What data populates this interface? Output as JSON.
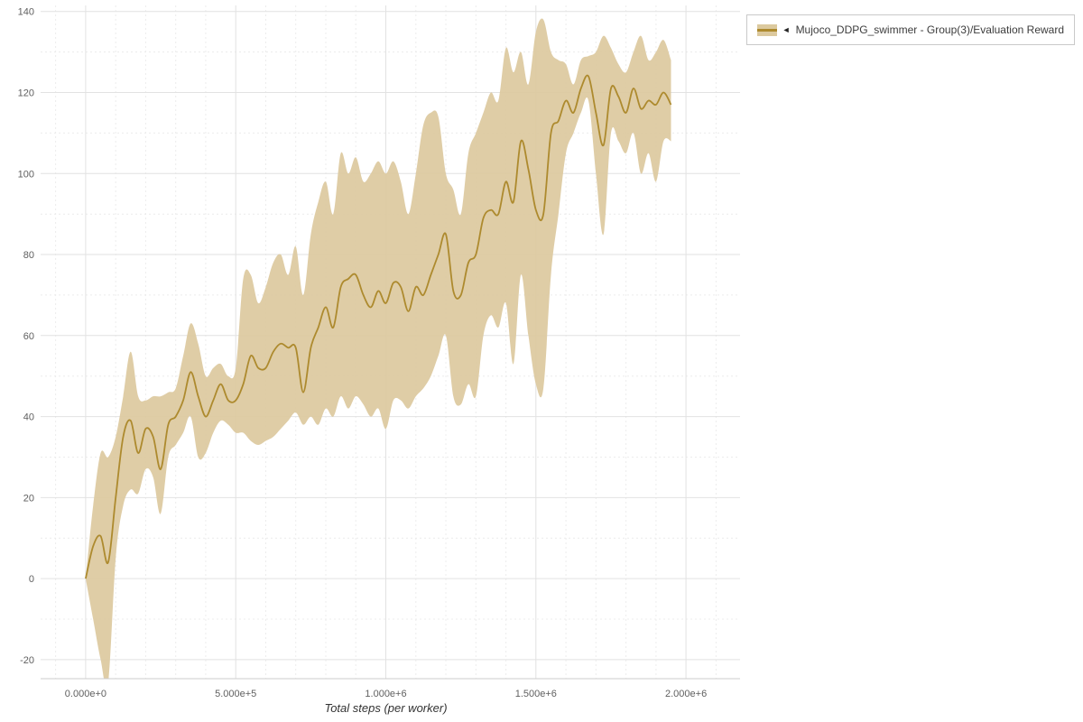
{
  "legend": {
    "toggle_icon": "◄"
  },
  "chart_data": {
    "type": "line",
    "title": "",
    "xlabel": "Total steps (per worker)",
    "ylabel": "",
    "grid": true,
    "legend_position": "top-right",
    "xlim": [
      -150000,
      2180000
    ],
    "ylim": [
      -24.7,
      141.5
    ],
    "x_ticks": [
      {
        "value": 0,
        "label": "0.000e+0"
      },
      {
        "value": 500000,
        "label": "5.000e+5"
      },
      {
        "value": 1000000,
        "label": "1.000e+6"
      },
      {
        "value": 1500000,
        "label": "1.500e+6"
      },
      {
        "value": 2000000,
        "label": "2.000e+6"
      }
    ],
    "y_ticks": [
      {
        "value": -20,
        "label": "-20"
      },
      {
        "value": 0,
        "label": "0"
      },
      {
        "value": 20,
        "label": "20"
      },
      {
        "value": 40,
        "label": "40"
      },
      {
        "value": 60,
        "label": "60"
      },
      {
        "value": 80,
        "label": "80"
      },
      {
        "value": 100,
        "label": "100"
      },
      {
        "value": 120,
        "label": "120"
      },
      {
        "value": 140,
        "label": "140"
      }
    ],
    "series": [
      {
        "name": "Mujoco_DDPG_swimmer - Group(3)/Evaluation Reward",
        "color": "#ad8a2e",
        "band_color": "#dcc99e",
        "x": [
          0,
          25000,
          50000,
          75000,
          100000,
          125000,
          150000,
          175000,
          200000,
          225000,
          250000,
          275000,
          300000,
          325000,
          350000,
          375000,
          400000,
          425000,
          450000,
          475000,
          500000,
          525000,
          550000,
          575000,
          600000,
          625000,
          650000,
          675000,
          700000,
          725000,
          750000,
          775000,
          800000,
          825000,
          850000,
          875000,
          900000,
          925000,
          950000,
          975000,
          1000000,
          1025000,
          1050000,
          1075000,
          1100000,
          1125000,
          1150000,
          1175000,
          1200000,
          1225000,
          1250000,
          1275000,
          1300000,
          1325000,
          1350000,
          1375000,
          1400000,
          1425000,
          1450000,
          1475000,
          1500000,
          1525000,
          1550000,
          1575000,
          1600000,
          1625000,
          1650000,
          1675000,
          1700000,
          1725000,
          1750000,
          1775000,
          1800000,
          1825000,
          1850000,
          1875000,
          1900000,
          1925000,
          1950000
        ],
        "mean": [
          0,
          8,
          10.5,
          4,
          20,
          35,
          39,
          31,
          37,
          35,
          27,
          38,
          40,
          44,
          51,
          45,
          40,
          44,
          48,
          44,
          44,
          48,
          55,
          52,
          52,
          56,
          58,
          57,
          57,
          46,
          57,
          62,
          67,
          62,
          72,
          74,
          75,
          70,
          67,
          71,
          68,
          73,
          72,
          66,
          72,
          70,
          75,
          80,
          85,
          71,
          70,
          78,
          80,
          89,
          91,
          90,
          98,
          93,
          108,
          101,
          91,
          90,
          110,
          113,
          118,
          115,
          121,
          124,
          115,
          107,
          121,
          119,
          115,
          121,
          116,
          118,
          117,
          120,
          117
        ],
        "lower": [
          0,
          -10,
          -20,
          -26,
          5,
          18,
          22,
          21,
          27,
          25,
          16,
          30,
          33,
          36,
          40,
          30,
          31,
          36,
          39,
          38,
          36,
          36,
          34,
          33,
          34,
          35,
          37,
          39,
          41,
          38,
          40,
          38,
          42,
          40,
          45,
          42,
          45,
          43,
          40,
          42,
          37,
          44,
          44,
          42,
          45,
          47,
          50,
          55,
          60,
          45,
          43,
          48,
          45,
          60,
          65,
          62,
          68,
          53,
          75,
          60,
          48,
          47,
          75,
          90,
          105,
          110,
          115,
          118,
          100,
          85,
          110,
          108,
          105,
          110,
          100,
          105,
          98,
          108,
          108
        ],
        "upper": [
          0,
          18,
          31,
          30,
          35,
          45,
          56,
          45,
          44,
          45,
          45,
          46,
          47,
          55,
          63,
          58,
          50,
          52,
          53,
          50,
          52,
          74,
          75,
          68,
          72,
          78,
          80,
          75,
          82,
          70,
          85,
          93,
          98,
          90,
          105,
          100,
          104,
          98,
          100,
          103,
          100,
          103,
          98,
          90,
          100,
          112,
          115,
          114,
          100,
          96,
          90,
          105,
          110,
          115,
          120,
          118,
          131,
          125,
          130,
          122,
          135,
          138,
          130,
          128,
          127,
          122,
          128,
          129,
          130,
          134,
          131,
          127,
          125,
          130,
          134,
          128,
          130,
          133,
          128
        ]
      }
    ]
  }
}
